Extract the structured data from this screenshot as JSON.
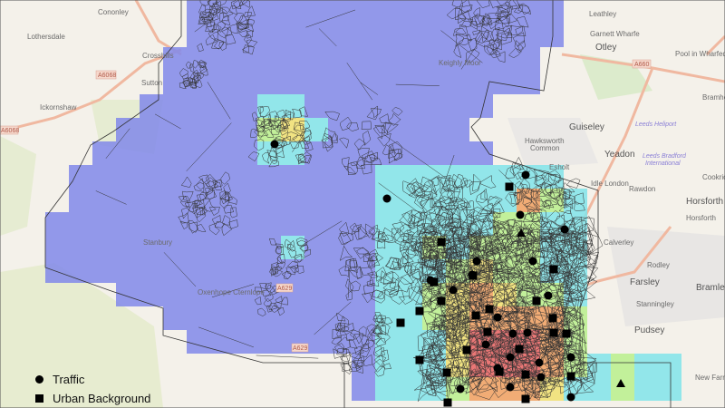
{
  "legend": {
    "items": [
      {
        "symbol": "circle",
        "label": "Traffic"
      },
      {
        "symbol": "square",
        "label": "Urban Background"
      }
    ]
  },
  "places": {
    "cononley": "Cononley",
    "lothersdale": "Lothersdale",
    "crosshills": "Crosshills",
    "sutton": "Sutton",
    "ickornshaw": "Ickornshaw",
    "stanbury": "Stanbury",
    "oxenhope": "Oxenhope Cternlope",
    "keighley_moor": "Keighly Moor",
    "otley": "Otley",
    "garnett_wharfe": "Garnett Wharfe",
    "leathley": "Leathley",
    "pool": "Pool in Wharfedale",
    "guiseley": "Guiseley",
    "hawksworth": "Hawksworth",
    "common": "Common",
    "yeadon": "Yeadon",
    "leeds_heliport": "Leeds Heliport",
    "lba1": "Leeds Bradford",
    "lba2": "International",
    "esholt": "Esholt",
    "rawdon": "Rawdon",
    "horsforth": "Horsforth",
    "calverley": "Calverley",
    "rodley": "Rodley",
    "farsley": "Farsley",
    "bramley": "Bramley",
    "stanningley": "Stanningley",
    "pudsey": "Pudsey",
    "new_farnley": "New Farnle",
    "bramhope": "Bramho",
    "cookridge": "Cookrid",
    "idle_london": "Idle London"
  },
  "roads": {
    "a6068a": "A6068",
    "a6068b": "A6068",
    "a660": "A660",
    "a629a": "A629",
    "a629b": "A629"
  },
  "colors": {
    "low": "#8088ea",
    "cyan": "#80e4ea",
    "green": "#b8f08c",
    "yellow": "#f0e070",
    "orange": "#f0a060",
    "high": "#e86262"
  }
}
